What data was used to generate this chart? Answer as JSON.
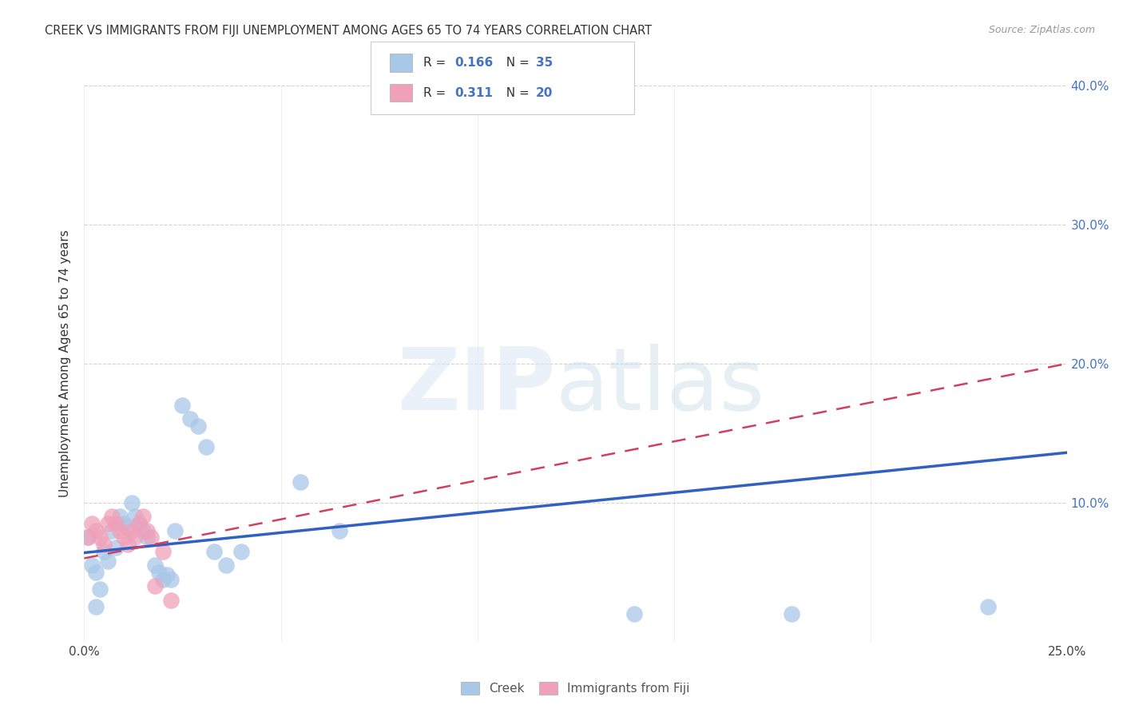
{
  "title": "CREEK VS IMMIGRANTS FROM FIJI UNEMPLOYMENT AMONG AGES 65 TO 74 YEARS CORRELATION CHART",
  "source": "Source: ZipAtlas.com",
  "ylabel": "Unemployment Among Ages 65 to 74 years",
  "xlim": [
    0.0,
    0.25
  ],
  "ylim": [
    0.0,
    0.4
  ],
  "xticks": [
    0.0,
    0.05,
    0.1,
    0.15,
    0.2,
    0.25
  ],
  "yticks": [
    0.0,
    0.1,
    0.2,
    0.3,
    0.4
  ],
  "background_color": "#ffffff",
  "creek_color": "#a8c8e8",
  "fiji_color": "#f0a0b8",
  "creek_line_color": "#3060c0",
  "fiji_line_color": "#d04060",
  "creek_r": 0.166,
  "creek_n": 35,
  "fiji_r": 0.311,
  "fiji_n": 20,
  "creek_points_x": [
    0.001,
    0.002,
    0.003,
    0.004,
    0.005,
    0.006,
    0.007,
    0.008,
    0.009,
    0.01,
    0.011,
    0.012,
    0.013,
    0.014,
    0.015,
    0.016,
    0.018,
    0.019,
    0.02,
    0.021,
    0.022,
    0.023,
    0.025,
    0.027,
    0.029,
    0.031,
    0.033,
    0.036,
    0.04,
    0.055,
    0.065,
    0.14,
    0.18,
    0.23,
    0.003
  ],
  "creek_points_y": [
    0.075,
    0.055,
    0.05,
    0.038,
    0.065,
    0.058,
    0.08,
    0.068,
    0.09,
    0.085,
    0.082,
    0.1,
    0.09,
    0.085,
    0.08,
    0.075,
    0.055,
    0.05,
    0.045,
    0.048,
    0.045,
    0.08,
    0.17,
    0.16,
    0.155,
    0.14,
    0.065,
    0.055,
    0.065,
    0.115,
    0.08,
    0.02,
    0.02,
    0.025,
    0.025
  ],
  "fiji_points_x": [
    0.001,
    0.002,
    0.003,
    0.004,
    0.005,
    0.006,
    0.007,
    0.008,
    0.009,
    0.01,
    0.011,
    0.012,
    0.013,
    0.014,
    0.015,
    0.016,
    0.017,
    0.018,
    0.02,
    0.022
  ],
  "fiji_points_y": [
    0.075,
    0.085,
    0.08,
    0.075,
    0.07,
    0.085,
    0.09,
    0.085,
    0.08,
    0.075,
    0.07,
    0.08,
    0.075,
    0.085,
    0.09,
    0.08,
    0.075,
    0.04,
    0.065,
    0.03
  ],
  "creek_line_x": [
    0.0,
    0.25
  ],
  "creek_line_y": [
    0.064,
    0.136
  ],
  "fiji_line_x": [
    0.0,
    0.25
  ],
  "fiji_line_y": [
    0.06,
    0.2
  ]
}
